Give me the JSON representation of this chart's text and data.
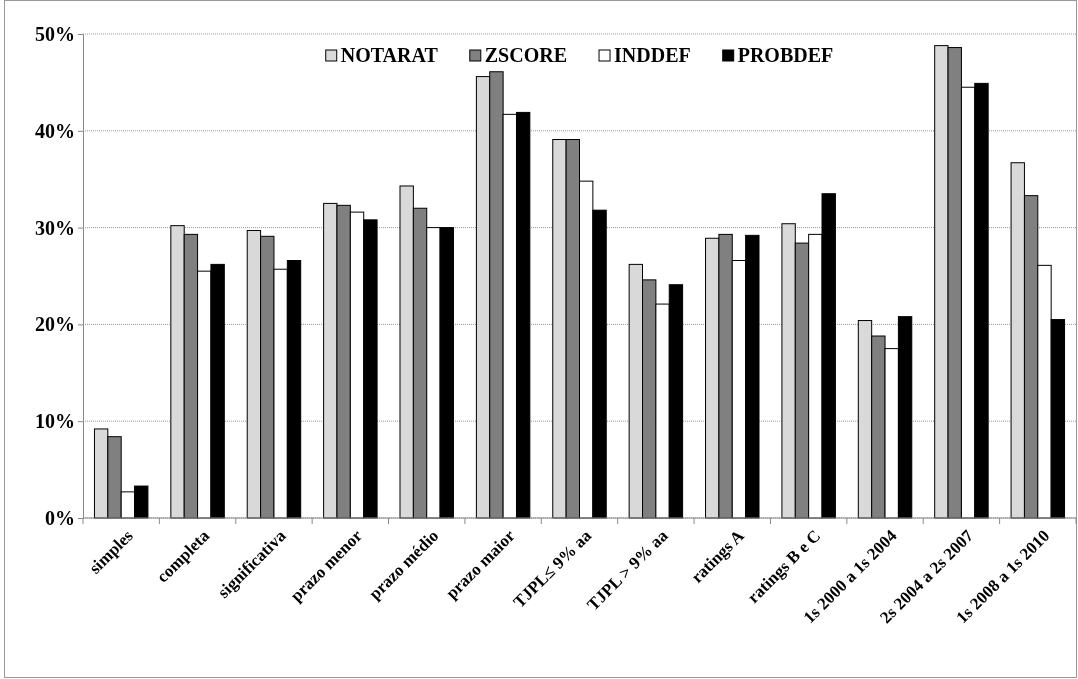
{
  "chart_data": {
    "type": "bar",
    "categories": [
      "simples",
      "completa",
      "significativa",
      "prazo menor",
      "prazo médio",
      "prazo maior",
      "TJPL≤ 9% aa",
      "TJPL > 9% aa",
      "ratings A",
      "ratings B e C",
      "1s 2000 a 1s 2004",
      "2s 2004 a 2s 2007",
      "1s 2008 a 1s 2010"
    ],
    "series": [
      {
        "name": "NOTARAT",
        "color": "#d9d9d9",
        "values": [
          9.2,
          30.2,
          29.7,
          32.5,
          34.3,
          45.6,
          39.1,
          26.2,
          28.9,
          30.4,
          20.4,
          48.8,
          36.7
        ]
      },
      {
        "name": "ZSCORE",
        "color": "#808080",
        "values": [
          8.4,
          29.3,
          29.1,
          32.3,
          32.0,
          46.1,
          39.1,
          24.6,
          29.3,
          28.4,
          18.8,
          48.6,
          33.3
        ]
      },
      {
        "name": "INDDEF",
        "color": "#ffffff",
        "values": [
          2.7,
          25.5,
          25.7,
          31.6,
          30.0,
          41.7,
          34.8,
          22.1,
          26.6,
          29.3,
          17.5,
          44.5,
          26.1
        ]
      },
      {
        "name": "PROBDEF",
        "color": "#000000",
        "values": [
          3.3,
          26.2,
          26.6,
          30.8,
          30.0,
          41.9,
          31.8,
          24.1,
          29.2,
          33.5,
          20.8,
          44.9,
          20.5
        ]
      }
    ],
    "ylim": [
      0,
      50
    ],
    "yticks": [
      {
        "value": 0,
        "label": "0%"
      },
      {
        "value": 10,
        "label": "10%"
      },
      {
        "value": 20,
        "label": "20%"
      },
      {
        "value": 30,
        "label": "30%"
      },
      {
        "value": 40,
        "label": "40%"
      },
      {
        "value": 50,
        "label": "50%"
      }
    ],
    "grid": "y",
    "legend": "top"
  }
}
